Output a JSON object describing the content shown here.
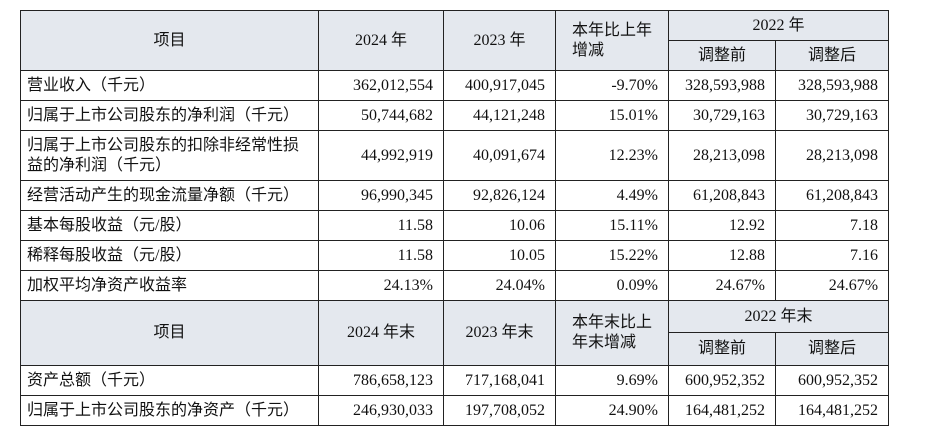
{
  "sections": [
    {
      "header": [
        "项目",
        "2024 年",
        "2023 年",
        "本年比上年增减",
        "2022 年",
        "调整前",
        "调整后"
      ],
      "rows": [
        [
          "营业收入（千元）",
          "362,012,554",
          "400,917,045",
          "-9.70%",
          "328,593,988",
          "328,593,988"
        ],
        [
          "归属于上市公司股东的净利润（千元）",
          "50,744,682",
          "44,121,248",
          "15.01%",
          "30,729,163",
          "30,729,163"
        ],
        [
          "归属于上市公司股东的扣除非经常性损益的净利润（千元）",
          "44,992,919",
          "40,091,674",
          "12.23%",
          "28,213,098",
          "28,213,098"
        ],
        [
          "经营活动产生的现金流量净额（千元）",
          "96,990,345",
          "92,826,124",
          "4.49%",
          "61,208,843",
          "61,208,843"
        ],
        [
          "基本每股收益（元/股）",
          "11.58",
          "10.06",
          "15.11%",
          "12.92",
          "7.18"
        ],
        [
          "稀释每股收益（元/股）",
          "11.58",
          "10.05",
          "15.22%",
          "12.88",
          "7.16"
        ],
        [
          "加权平均净资产收益率",
          "24.13%",
          "24.04%",
          "0.09%",
          "24.67%",
          "24.67%"
        ]
      ]
    },
    {
      "header": [
        "项目",
        "2024 年末",
        "2023 年末",
        "本年末比上年末增减",
        "2022 年末",
        "调整前",
        "调整后"
      ],
      "rows": [
        [
          "资产总额（千元）",
          "786,658,123",
          "717,168,041",
          "9.69%",
          "600,952,352",
          "600,952,352"
        ],
        [
          "归属于上市公司股东的净资产（千元）",
          "246,930,033",
          "197,708,052",
          "24.90%",
          "164,481,252",
          "164,481,252"
        ]
      ]
    }
  ]
}
